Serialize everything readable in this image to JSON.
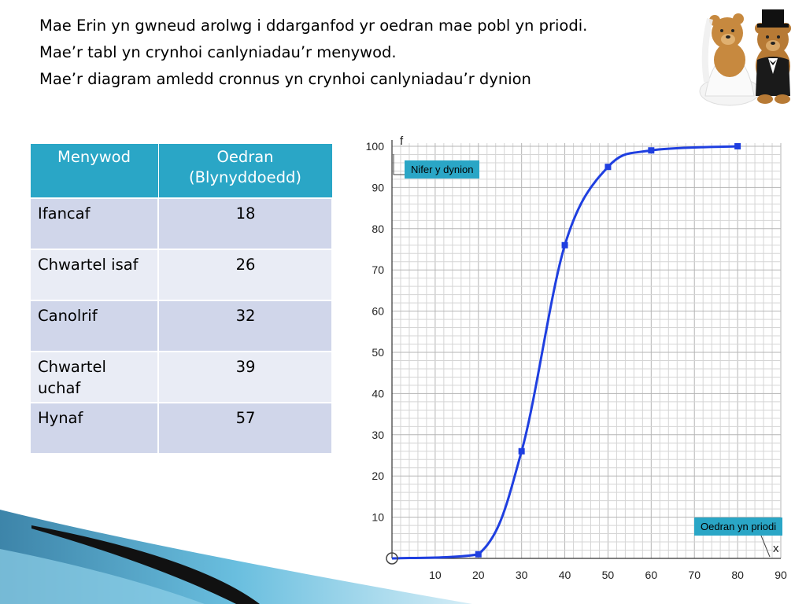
{
  "title_lines": [
    "Mae Erin yn gwneud arolwg i ddarganfod yr oedran mae pobl yn priodi.",
    "Mae’r tabl yn crynhoi canlyniadau’r menywod.",
    "Mae’r diagram amledd cronnus yn crynhoi canlyniadau’r dynion"
  ],
  "table": {
    "headers": [
      "Menywod",
      "Oedran (Blynyddoedd)"
    ],
    "rows": [
      {
        "label": "Ifancaf",
        "value": "18"
      },
      {
        "label": "Chwartel isaf",
        "value": "26"
      },
      {
        "label": "Canolrif",
        "value": "32"
      },
      {
        "label": "Chwartel uchaf",
        "value": "39"
      },
      {
        "label": "Hynaf",
        "value": "57"
      }
    ]
  },
  "chart_data": {
    "type": "line",
    "x": [
      0,
      20,
      30,
      40,
      50,
      60,
      80
    ],
    "y": [
      0,
      1,
      26,
      76,
      95,
      99,
      100
    ],
    "xlim": [
      0,
      90
    ],
    "ylim": [
      0,
      100
    ],
    "x_ticks": [
      10,
      20,
      30,
      40,
      50,
      60,
      70,
      80,
      90
    ],
    "y_ticks": [
      10,
      20,
      30,
      40,
      50,
      60,
      70,
      80,
      90,
      100
    ],
    "grid": true,
    "x_axis_letter": "x",
    "y_axis_letter": "f",
    "y_label": "Nifer y dynion",
    "x_label": "Oedran yn priodi",
    "line_color": "#1f3fe0"
  },
  "colors": {
    "header_bg": "#2aa6c6",
    "row_odd": "#d0d6ea",
    "row_even": "#e9ecf5",
    "label_bg": "#2aa6c6"
  }
}
